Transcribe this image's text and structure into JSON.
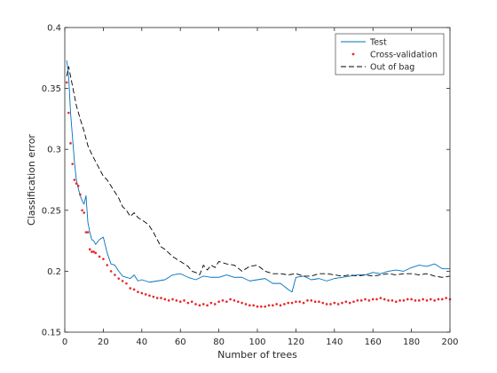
{
  "chart_data": {
    "type": "line",
    "title": "",
    "xlabel": "Number of trees",
    "ylabel": "Classification error",
    "xlim": [
      0,
      200
    ],
    "ylim": [
      0.15,
      0.4
    ],
    "xticks": [
      0,
      20,
      40,
      60,
      80,
      100,
      120,
      140,
      160,
      180,
      200
    ],
    "yticks": [
      0.15,
      0.2,
      0.25,
      0.3,
      0.35,
      0.4
    ],
    "xtick_labels": [
      "0",
      "20",
      "40",
      "60",
      "80",
      "100",
      "120",
      "140",
      "160",
      "180",
      "200"
    ],
    "ytick_labels": [
      "0.15",
      "0.2",
      "0.25",
      "0.3",
      "0.35",
      "0.4"
    ],
    "grid": false,
    "legend_position": "top-right",
    "series": [
      {
        "name": "Test",
        "style": "solid-line",
        "color": "#0072BD",
        "x": [
          1,
          2,
          3,
          4,
          5,
          6,
          7,
          8,
          9,
          10,
          11,
          12,
          13,
          14,
          15,
          16,
          18,
          20,
          22,
          24,
          26,
          28,
          30,
          32,
          34,
          36,
          38,
          40,
          44,
          48,
          52,
          56,
          60,
          64,
          68,
          72,
          76,
          80,
          84,
          88,
          92,
          96,
          100,
          104,
          108,
          112,
          116,
          118,
          120,
          124,
          128,
          132,
          136,
          140,
          144,
          148,
          152,
          156,
          160,
          164,
          168,
          172,
          176,
          180,
          184,
          188,
          192,
          196,
          200
        ],
        "y": [
          0.373,
          0.36,
          0.33,
          0.31,
          0.29,
          0.275,
          0.268,
          0.262,
          0.258,
          0.255,
          0.262,
          0.24,
          0.232,
          0.226,
          0.225,
          0.222,
          0.226,
          0.228,
          0.215,
          0.206,
          0.205,
          0.2,
          0.196,
          0.195,
          0.194,
          0.197,
          0.192,
          0.193,
          0.191,
          0.192,
          0.193,
          0.197,
          0.198,
          0.195,
          0.193,
          0.196,
          0.195,
          0.195,
          0.197,
          0.195,
          0.195,
          0.192,
          0.193,
          0.194,
          0.19,
          0.19,
          0.185,
          0.183,
          0.195,
          0.196,
          0.193,
          0.194,
          0.192,
          0.194,
          0.195,
          0.196,
          0.197,
          0.197,
          0.199,
          0.198,
          0.2,
          0.201,
          0.2,
          0.203,
          0.205,
          0.204,
          0.206,
          0.202,
          0.202
        ]
      },
      {
        "name": "Cross-validation",
        "style": "dots",
        "color": "#E8262B",
        "x": [
          1,
          2,
          3,
          4,
          5,
          6,
          7,
          8,
          9,
          10,
          11,
          12,
          13,
          14,
          15,
          16,
          18,
          20,
          22,
          24,
          26,
          28,
          30,
          32,
          34,
          36,
          38,
          40,
          42,
          44,
          46,
          48,
          50,
          52,
          54,
          56,
          58,
          60,
          62,
          64,
          66,
          68,
          70,
          72,
          74,
          76,
          78,
          80,
          82,
          84,
          86,
          88,
          90,
          92,
          94,
          96,
          98,
          100,
          102,
          104,
          106,
          108,
          110,
          112,
          114,
          116,
          118,
          120,
          122,
          124,
          126,
          128,
          130,
          132,
          134,
          136,
          138,
          140,
          142,
          144,
          146,
          148,
          150,
          152,
          154,
          156,
          158,
          160,
          162,
          164,
          166,
          168,
          170,
          172,
          174,
          176,
          178,
          180,
          182,
          184,
          186,
          188,
          190,
          192,
          194,
          196,
          198,
          200
        ],
        "y": [
          0.355,
          0.33,
          0.305,
          0.288,
          0.275,
          0.272,
          0.27,
          0.263,
          0.25,
          0.248,
          0.232,
          0.232,
          0.218,
          0.216,
          0.216,
          0.215,
          0.212,
          0.21,
          0.205,
          0.2,
          0.197,
          0.194,
          0.192,
          0.19,
          0.186,
          0.185,
          0.183,
          0.182,
          0.181,
          0.18,
          0.179,
          0.178,
          0.178,
          0.177,
          0.176,
          0.177,
          0.176,
          0.175,
          0.176,
          0.174,
          0.175,
          0.173,
          0.172,
          0.173,
          0.172,
          0.174,
          0.173,
          0.175,
          0.176,
          0.175,
          0.177,
          0.176,
          0.175,
          0.174,
          0.173,
          0.172,
          0.172,
          0.171,
          0.171,
          0.171,
          0.172,
          0.172,
          0.173,
          0.172,
          0.173,
          0.174,
          0.174,
          0.175,
          0.175,
          0.174,
          0.176,
          0.176,
          0.175,
          0.175,
          0.174,
          0.173,
          0.173,
          0.174,
          0.173,
          0.174,
          0.175,
          0.174,
          0.175,
          0.176,
          0.176,
          0.177,
          0.176,
          0.177,
          0.177,
          0.178,
          0.177,
          0.176,
          0.176,
          0.175,
          0.176,
          0.176,
          0.177,
          0.177,
          0.176,
          0.176,
          0.177,
          0.176,
          0.177,
          0.176,
          0.177,
          0.177,
          0.178,
          0.177
        ]
      },
      {
        "name": "Out of bag",
        "style": "dashed-line",
        "color": "#000000",
        "x": [
          1,
          2,
          4,
          6,
          8,
          10,
          12,
          14,
          16,
          18,
          20,
          22,
          24,
          26,
          28,
          30,
          32,
          34,
          36,
          38,
          40,
          42,
          44,
          46,
          48,
          50,
          52,
          54,
          56,
          58,
          60,
          62,
          64,
          66,
          68,
          70,
          72,
          74,
          76,
          78,
          80,
          84,
          88,
          92,
          96,
          100,
          104,
          108,
          112,
          116,
          120,
          124,
          128,
          132,
          136,
          140,
          144,
          148,
          152,
          156,
          160,
          164,
          168,
          172,
          176,
          180,
          184,
          188,
          192,
          196,
          200
        ],
        "y": [
          0.36,
          0.368,
          0.352,
          0.336,
          0.325,
          0.315,
          0.303,
          0.296,
          0.29,
          0.284,
          0.278,
          0.275,
          0.27,
          0.265,
          0.26,
          0.253,
          0.25,
          0.245,
          0.248,
          0.244,
          0.242,
          0.24,
          0.237,
          0.232,
          0.226,
          0.22,
          0.218,
          0.215,
          0.212,
          0.21,
          0.208,
          0.206,
          0.204,
          0.2,
          0.199,
          0.197,
          0.205,
          0.201,
          0.205,
          0.203,
          0.208,
          0.206,
          0.205,
          0.2,
          0.204,
          0.205,
          0.2,
          0.198,
          0.198,
          0.197,
          0.198,
          0.196,
          0.196,
          0.198,
          0.198,
          0.197,
          0.196,
          0.197,
          0.196,
          0.197,
          0.196,
          0.197,
          0.198,
          0.197,
          0.198,
          0.198,
          0.197,
          0.198,
          0.196,
          0.195,
          0.196
        ]
      }
    ]
  }
}
